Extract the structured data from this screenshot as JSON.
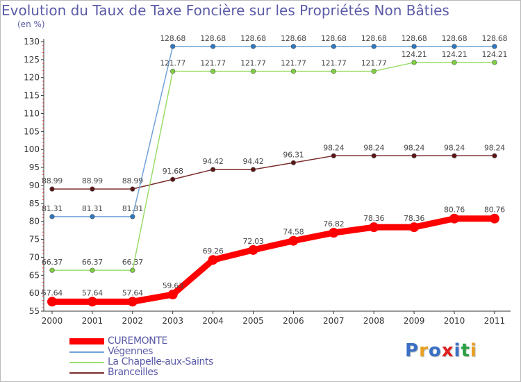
{
  "header": {
    "title": "Evolution du Taux de Taxe Foncière sur les Propriétés Non Bâties",
    "unit": "(en %)"
  },
  "logo": {
    "text": "Proxiti",
    "colors": [
      "#3a6fc4",
      "#e8a020",
      "#3a6fc4",
      "#e02020",
      "#3a6fc4",
      "#2aa040",
      "#e8a020"
    ]
  },
  "chart_data": {
    "type": "line",
    "title": "Evolution du Taux de Taxe Foncière sur les Propriétés Non Bâties",
    "ylabel": "(en %)",
    "xlabel": "",
    "x": [
      "2000",
      "2001",
      "2002",
      "2003",
      "2004",
      "2005",
      "2006",
      "2007",
      "2008",
      "2009",
      "2010",
      "2011"
    ],
    "ylim": [
      55,
      130
    ],
    "yticks": [
      55,
      60,
      65,
      70,
      75,
      80,
      85,
      90,
      95,
      100,
      105,
      110,
      115,
      120,
      125,
      130
    ],
    "grid": false,
    "legend": "bottom-left",
    "series": [
      {
        "name": "CUREMONTE",
        "color": "#ff0000",
        "marker": "#ff0000",
        "width": "thick",
        "values": [
          57.64,
          57.64,
          57.64,
          59.63,
          69.26,
          72.03,
          74.58,
          76.82,
          78.36,
          78.36,
          80.76,
          80.76
        ],
        "labels": [
          "57.64",
          "57.64",
          "57.64",
          "59.63",
          "69.26",
          "72.03",
          "74.58",
          "76.82",
          "78.36",
          "78.36",
          "80.76",
          "80.76"
        ]
      },
      {
        "name": "Végennes",
        "color": "#6fa3d8",
        "marker": "#2f78c0",
        "width": "thin",
        "values": [
          81.31,
          81.31,
          81.31,
          128.68,
          128.68,
          128.68,
          128.68,
          128.68,
          128.68,
          128.68,
          128.68,
          128.68
        ],
        "labels": [
          "81.31",
          "81.31",
          "81.31",
          "128.68",
          "128.68",
          "128.68",
          "128.68",
          "128.68",
          "128.68",
          "128.68",
          "128.68",
          "128.68"
        ]
      },
      {
        "name": "La Chapelle-aux-Saints",
        "color": "#99dd66",
        "marker": "#7fd040",
        "width": "thin",
        "values": [
          66.37,
          66.37,
          66.37,
          121.77,
          121.77,
          121.77,
          121.77,
          121.77,
          121.77,
          124.21,
          124.21,
          124.21
        ],
        "labels": [
          "66.37",
          "66.37",
          "66.37",
          "121.77",
          "121.77",
          "121.77",
          "121.77",
          "121.77",
          "121.77",
          "124.21",
          "124.21",
          "124.21"
        ]
      },
      {
        "name": "Branceilles",
        "color": "#7a2a2a",
        "marker": "#5a1414",
        "width": "thin",
        "values": [
          88.99,
          88.99,
          88.99,
          91.68,
          94.42,
          94.42,
          96.31,
          98.24,
          98.24,
          98.24,
          98.24,
          98.24
        ],
        "labels": [
          "88.99",
          "88.99",
          "88.99",
          "91.68",
          "94.42",
          "94.42",
          "96.31",
          "98.24",
          "98.24",
          "98.24",
          "98.24",
          "98.24"
        ]
      }
    ]
  }
}
